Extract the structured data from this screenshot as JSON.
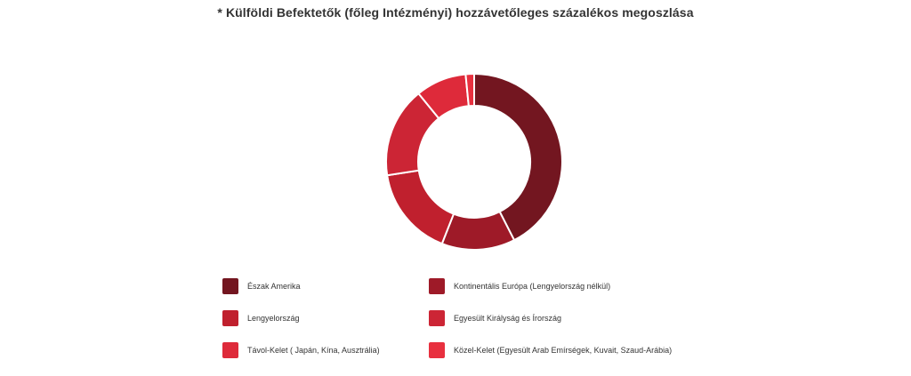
{
  "chart_data": {
    "type": "pie",
    "variant": "donut",
    "title": "* Külföldi Befektetők (főleg Intézményi) hozzávetőleges százalékos megoszlása",
    "categories": [
      "Észak Amerika",
      "Kontinentális Európa (Lengyelország nélkül)",
      "Lengyelország",
      "Egyesült Királyság és Írország",
      "Távol-Kelet ( Japán, Kína, Ausztrália)",
      "Közel-Kelet (Egyesült Arab Emírségek, Kuvait, Szaud-Arábia)"
    ],
    "values": [
      41,
      13,
      16,
      16,
      9,
      1.5
    ],
    "colors": [
      "#731620",
      "#9e1a28",
      "#c0202e",
      "#cc2535",
      "#de2a3a",
      "#e8303f"
    ],
    "legend_position": "bottom"
  }
}
